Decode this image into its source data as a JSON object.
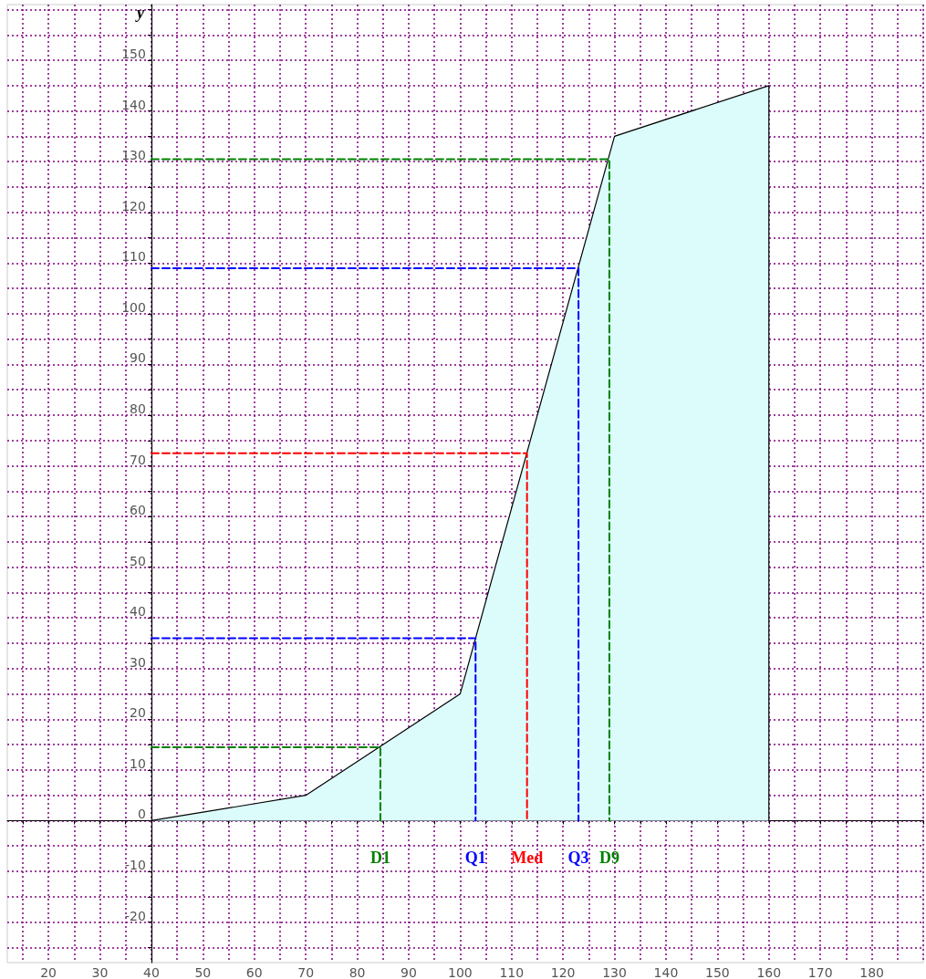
{
  "chart_data": {
    "type": "area",
    "ylabel": "y",
    "xlim": [
      12,
      190
    ],
    "ylim": [
      -28,
      161
    ],
    "xticks": [
      {
        "value": 15,
        "label": null
      },
      20,
      {
        "value": 25,
        "label": null
      },
      30,
      {
        "value": 35,
        "label": null
      },
      40,
      {
        "value": 45,
        "label": null
      },
      50,
      {
        "value": 55,
        "label": null
      },
      60,
      {
        "value": 65,
        "label": null
      },
      70,
      {
        "value": 75,
        "label": null
      },
      80,
      {
        "value": 85,
        "label": null
      },
      90,
      {
        "value": 95,
        "label": null
      },
      100,
      {
        "value": 105,
        "label": null
      },
      110,
      {
        "value": 115,
        "label": null
      },
      120,
      {
        "value": 125,
        "label": null
      },
      130,
      {
        "value": 135,
        "label": null
      },
      140,
      {
        "value": 145,
        "label": null
      },
      150,
      {
        "value": 155,
        "label": null
      },
      160,
      {
        "value": 165,
        "label": null
      },
      170,
      {
        "value": 175,
        "label": null
      },
      180,
      {
        "value": 185,
        "label": null
      },
      {
        "value": 190,
        "label": null
      }
    ],
    "yticks": [
      {
        "value": -25,
        "label": null
      },
      -20,
      {
        "value": -15,
        "label": null
      },
      -10,
      {
        "value": -5,
        "label": null
      },
      0,
      {
        "value": 5,
        "label": null
      },
      10,
      {
        "value": 15,
        "label": null
      },
      20,
      {
        "value": 25,
        "label": null
      },
      30,
      {
        "value": 35,
        "label": null
      },
      40,
      {
        "value": 45,
        "label": null
      },
      50,
      {
        "value": 55,
        "label": null
      },
      60,
      {
        "value": 65,
        "label": null
      },
      70,
      {
        "value": 75,
        "label": null
      },
      80,
      {
        "value": 85,
        "label": null
      },
      90,
      {
        "value": 95,
        "label": null
      },
      100,
      {
        "value": 105,
        "label": null
      },
      110,
      {
        "value": 115,
        "label": null
      },
      120,
      {
        "value": 125,
        "label": null
      },
      130,
      {
        "value": 135,
        "label": null
      },
      140,
      {
        "value": 145,
        "label": null
      },
      150,
      {
        "value": 155,
        "label": null
      },
      {
        "value": 160,
        "label": null
      }
    ],
    "grid": true,
    "marker": "none",
    "series": [
      {
        "color": "#000000",
        "x": [
          40,
          70,
          100,
          130,
          160,
          160
        ],
        "values": [
          0,
          5,
          25,
          135,
          145,
          0
        ]
      },
      {
        "type": "line",
        "name": "D1",
        "color": "#008000",
        "line_style": "dashed",
        "x": [
          40,
          84.5,
          84.5
        ],
        "values": [
          14.5,
          14.5,
          0
        ]
      },
      {
        "type": "line",
        "name": "Q1",
        "color": "#0000ff",
        "line_style": "dashed",
        "x": [
          40,
          103,
          103
        ],
        "values": [
          36,
          36,
          0
        ]
      },
      {
        "type": "line",
        "name": "Med",
        "color": "#ff0000",
        "line_style": "dashed",
        "x": [
          40,
          113,
          113
        ],
        "values": [
          72.5,
          72.5,
          0
        ]
      },
      {
        "type": "line",
        "name": "Q3",
        "color": "#0000ff",
        "line_style": "dashed",
        "x": [
          40,
          123,
          123
        ],
        "values": [
          109,
          109,
          0
        ]
      },
      {
        "type": "line",
        "name": "D9",
        "color": "#008000",
        "line_style": "dashed",
        "x": [
          40,
          129,
          129
        ],
        "values": [
          130.5,
          130.5,
          0
        ]
      }
    ]
  }
}
